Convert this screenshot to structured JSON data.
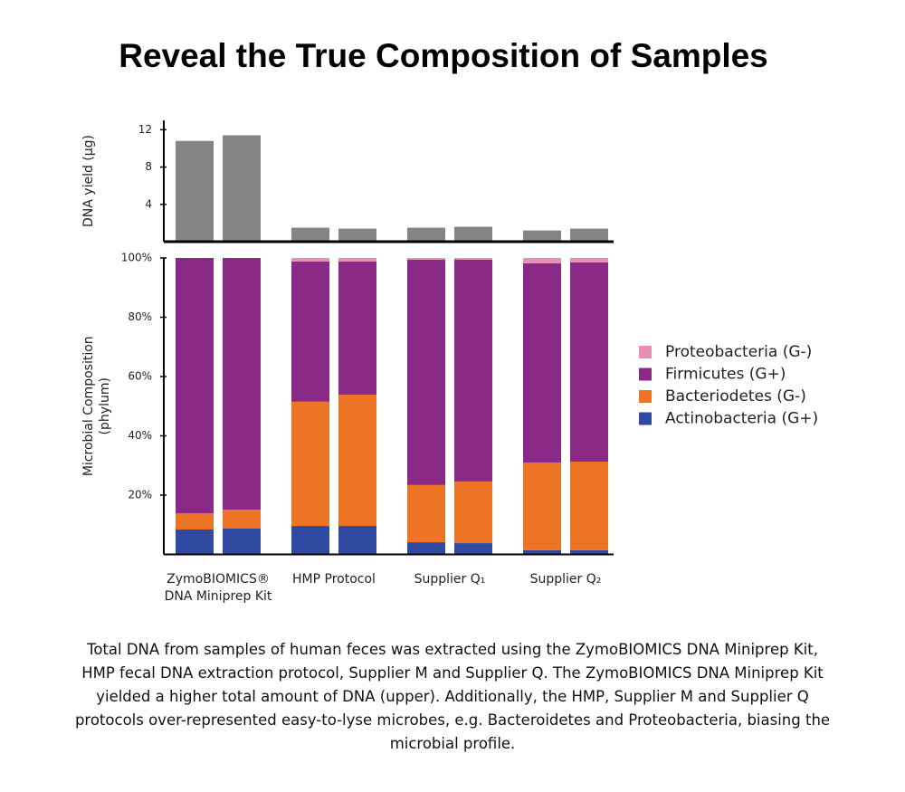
{
  "title": "Reveal the True Composition of Samples",
  "caption": "Total DNA from samples of human feces was extracted using the ZymoBIOMICS DNA Miniprep Kit, HMP fecal DNA extraction protocol, Supplier M and Supplier Q. The ZymoBIOMICS DNA Miniprep Kit yielded a higher total amount of DNA (upper). Additionally, the HMP, Supplier M and Supplier Q protocols over-represented easy-to-lyse microbes, e.g. Bacteroidetes and Proteobacteria, biasing the microbial profile.",
  "chart_data": [
    {
      "type": "bar",
      "ylabel": "DNA yield (µg)",
      "categories": [
        null,
        null,
        null,
        null,
        null,
        null,
        null,
        null
      ],
      "values": [
        10.8,
        11.4,
        1.5,
        1.4,
        1.5,
        1.6,
        1.2,
        1.4
      ],
      "color": "#858585",
      "ylim": [
        0,
        13
      ],
      "yticks": [
        4,
        8,
        12
      ]
    },
    {
      "type": "stacked_bar",
      "ylabel": [
        "Microbial Composition",
        "(phylum)"
      ],
      "categories": [
        null,
        null,
        null,
        null,
        null,
        null,
        null,
        null
      ],
      "groups": [
        [
          "ZymoBIOMICS®",
          "DNA Miniprep Kit"
        ],
        [
          "HMP Protocol"
        ],
        [
          "Supplier Q₁"
        ],
        [
          "Supplier Q₂"
        ]
      ],
      "series": [
        {
          "name": "Proteobacteria (G-)",
          "color": "#e88fb4",
          "values": [
            0,
            0,
            1.2,
            1.2,
            0.6,
            0.6,
            1.8,
            1.5
          ]
        },
        {
          "name": "Firmicutes (G+)",
          "color": "#8b2a86",
          "values": [
            86.1,
            84.9,
            47.3,
            44.9,
            76.0,
            74.8,
            67.2,
            67.2
          ]
        },
        {
          "name": "Bacteriodetes (G-)",
          "color": "#ec7424",
          "values": [
            5.5,
            6.4,
            41.9,
            44.3,
            19.3,
            20.8,
            29.6,
            29.9
          ]
        },
        {
          "name": "Actinobacteria (G+)",
          "color": "#2f4aa0",
          "values": [
            8.4,
            8.7,
            9.6,
            9.6,
            4.1,
            3.8,
            1.4,
            1.4
          ]
        }
      ],
      "ylim": [
        0,
        100
      ],
      "yticks": [
        {
          "value": 20,
          "label": "20%"
        },
        {
          "value": 40,
          "label": "40%"
        },
        {
          "value": 60,
          "label": "60%"
        },
        {
          "value": 80,
          "label": "80%"
        },
        {
          "value": 100,
          "label": "100%"
        }
      ],
      "legend": "right"
    }
  ]
}
